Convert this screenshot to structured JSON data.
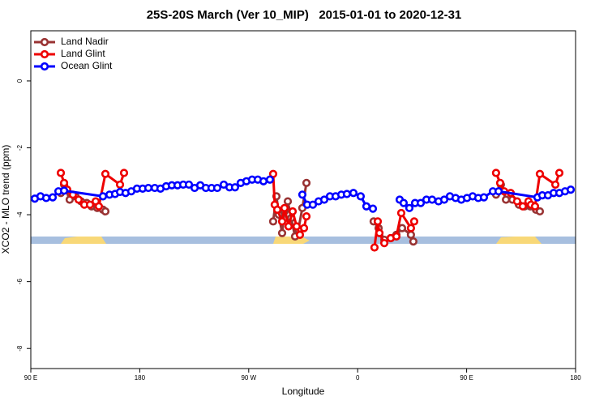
{
  "chart_data": {
    "type": "line",
    "title": "25S-20S March (Ver 10_MIP)   2015-01-01 to 2020-12-31",
    "x_label": "Longitude",
    "y_label": "XCO2 - MLO trend (ppm)",
    "xlim": [
      90,
      540
    ],
    "xticks": [
      {
        "value": 90,
        "label": "90 E"
      },
      180,
      {
        "value": 270,
        "label": "90 W"
      },
      {
        "value": 360,
        "label": "0"
      },
      {
        "value": 450,
        "label": "90 E"
      },
      {
        "value": 540,
        "label": "180"
      }
    ],
    "ylim": [
      -8.6,
      1.5
    ],
    "yticks": [
      -8,
      -6,
      -4,
      -2,
      0
    ],
    "legend": "top-left",
    "series": [
      {
        "name": "Land Nadir",
        "color": "#993333",
        "x": [
          114.8,
          117.5,
          122.1,
          126.8,
          131.5,
          136.2,
          140.2,
          144.9,
          149.6,
          151.6,
          null,
          290.2,
          292.9,
          294.9,
          297.6,
          299.6,
          302.3,
          305.0,
          308.3,
          311.0,
          314.3,
          317.7,
          null,
          373.2,
          377.3,
          382.0,
          387.3,
          392.0,
          396.7,
          404.0,
          406.0,
          null,
          474.3,
          478.3,
          482.5,
          487.8,
          493.2,
          497.9,
          502.6,
          507.3,
          510.5
        ],
        "values": [
          -3.35,
          -3.1,
          -3.55,
          -3.45,
          -3.6,
          -3.65,
          -3.75,
          -3.8,
          -3.85,
          -3.9,
          null,
          -4.2,
          -3.45,
          -4.0,
          -4.55,
          -3.9,
          -3.6,
          -4.1,
          -4.65,
          -4.45,
          -3.8,
          -3.05,
          null,
          -4.2,
          -4.4,
          -4.75,
          -4.7,
          -4.6,
          -4.4,
          -4.6,
          -4.8,
          null,
          -3.4,
          -3.1,
          -3.55,
          -3.55,
          -3.7,
          -3.75,
          -3.75,
          -3.85,
          -3.9
        ]
      },
      {
        "name": "Land Glint",
        "color": "#ee0000",
        "x": [
          114.8,
          117.5,
          120.1,
          124.8,
          129.5,
          134.2,
          138.9,
          143.6,
          146.2,
          151.6,
          163.7,
          167.0,
          null,
          290.2,
          291.5,
          293.6,
          297.6,
          299.6,
          302.9,
          306.3,
          309.6,
          312.3,
          315.7,
          317.7,
          null,
          373.9,
          376.6,
          378.0,
          382.0,
          387.3,
          392.0,
          396.0,
          404.0,
          406.7,
          null,
          474.3,
          477.7,
          481.0,
          486.4,
          491.7,
          496.4,
          501.1,
          503.2,
          506.5,
          510.5,
          523.3,
          526.6
        ],
        "values": [
          -2.75,
          -3.05,
          -3.25,
          -3.4,
          -3.55,
          -3.7,
          -3.7,
          -3.6,
          -3.75,
          -2.78,
          -3.1,
          -2.75,
          null,
          -2.78,
          -3.7,
          -3.85,
          -4.2,
          -3.8,
          -4.35,
          -3.9,
          -4.35,
          -4.6,
          -4.4,
          -4.05,
          null,
          -4.98,
          -4.2,
          -4.55,
          -4.85,
          -4.7,
          -4.65,
          -3.95,
          -4.4,
          -4.2,
          null,
          -2.75,
          -3.05,
          -3.3,
          -3.35,
          -3.6,
          -3.75,
          -3.6,
          -3.7,
          -3.75,
          -2.78,
          -3.1,
          -2.75
        ]
      },
      {
        "name": "Ocean Glint",
        "color": "#0000ff",
        "x": [
          93.3,
          98.0,
          102.7,
          108.1,
          112.8,
          117.5,
          149.6,
          155.0,
          159.6,
          163.7,
          168.3,
          173.0,
          177.7,
          182.4,
          187.1,
          192.4,
          197.1,
          201.8,
          206.5,
          211.2,
          215.9,
          220.6,
          225.3,
          230.0,
          234.6,
          239.3,
          244.0,
          249.4,
          254.1,
          258.7,
          263.4,
          268.1,
          272.8,
          277.5,
          282.2,
          287.5,
          null,
          314.3,
          318.3,
          323.0,
          327.7,
          332.4,
          337.1,
          341.8,
          346.5,
          351.1,
          356.5,
          362.5,
          367.2,
          372.6,
          null,
          394.7,
          398.0,
          402.7,
          407.4,
          412.1,
          416.8,
          421.5,
          426.8,
          431.5,
          436.2,
          440.9,
          445.6,
          450.3,
          455.0,
          459.6,
          464.3,
          471.7,
          476.4,
          508.5,
          512.5,
          517.2,
          521.9,
          526.6,
          531.3,
          536.0
        ],
        "values": [
          -3.52,
          -3.45,
          -3.5,
          -3.48,
          -3.3,
          -3.28,
          -3.45,
          -3.4,
          -3.38,
          -3.32,
          -3.35,
          -3.3,
          -3.22,
          -3.22,
          -3.2,
          -3.2,
          -3.22,
          -3.15,
          -3.12,
          -3.12,
          -3.1,
          -3.1,
          -3.2,
          -3.12,
          -3.2,
          -3.2,
          -3.2,
          -3.1,
          -3.18,
          -3.18,
          -3.05,
          -3.0,
          -2.95,
          -2.95,
          -3.0,
          -2.95,
          null,
          -3.4,
          -3.7,
          -3.7,
          -3.6,
          -3.55,
          -3.45,
          -3.45,
          -3.4,
          -3.38,
          -3.35,
          -3.45,
          -3.75,
          -3.82,
          null,
          -3.55,
          -3.65,
          -3.8,
          -3.65,
          -3.65,
          -3.55,
          -3.55,
          -3.6,
          -3.55,
          -3.45,
          -3.5,
          -3.55,
          -3.5,
          -3.45,
          -3.5,
          -3.48,
          -3.3,
          -3.3,
          -3.48,
          -3.42,
          -3.42,
          -3.35,
          -3.35,
          -3.3,
          -3.25
        ]
      }
    ]
  }
}
